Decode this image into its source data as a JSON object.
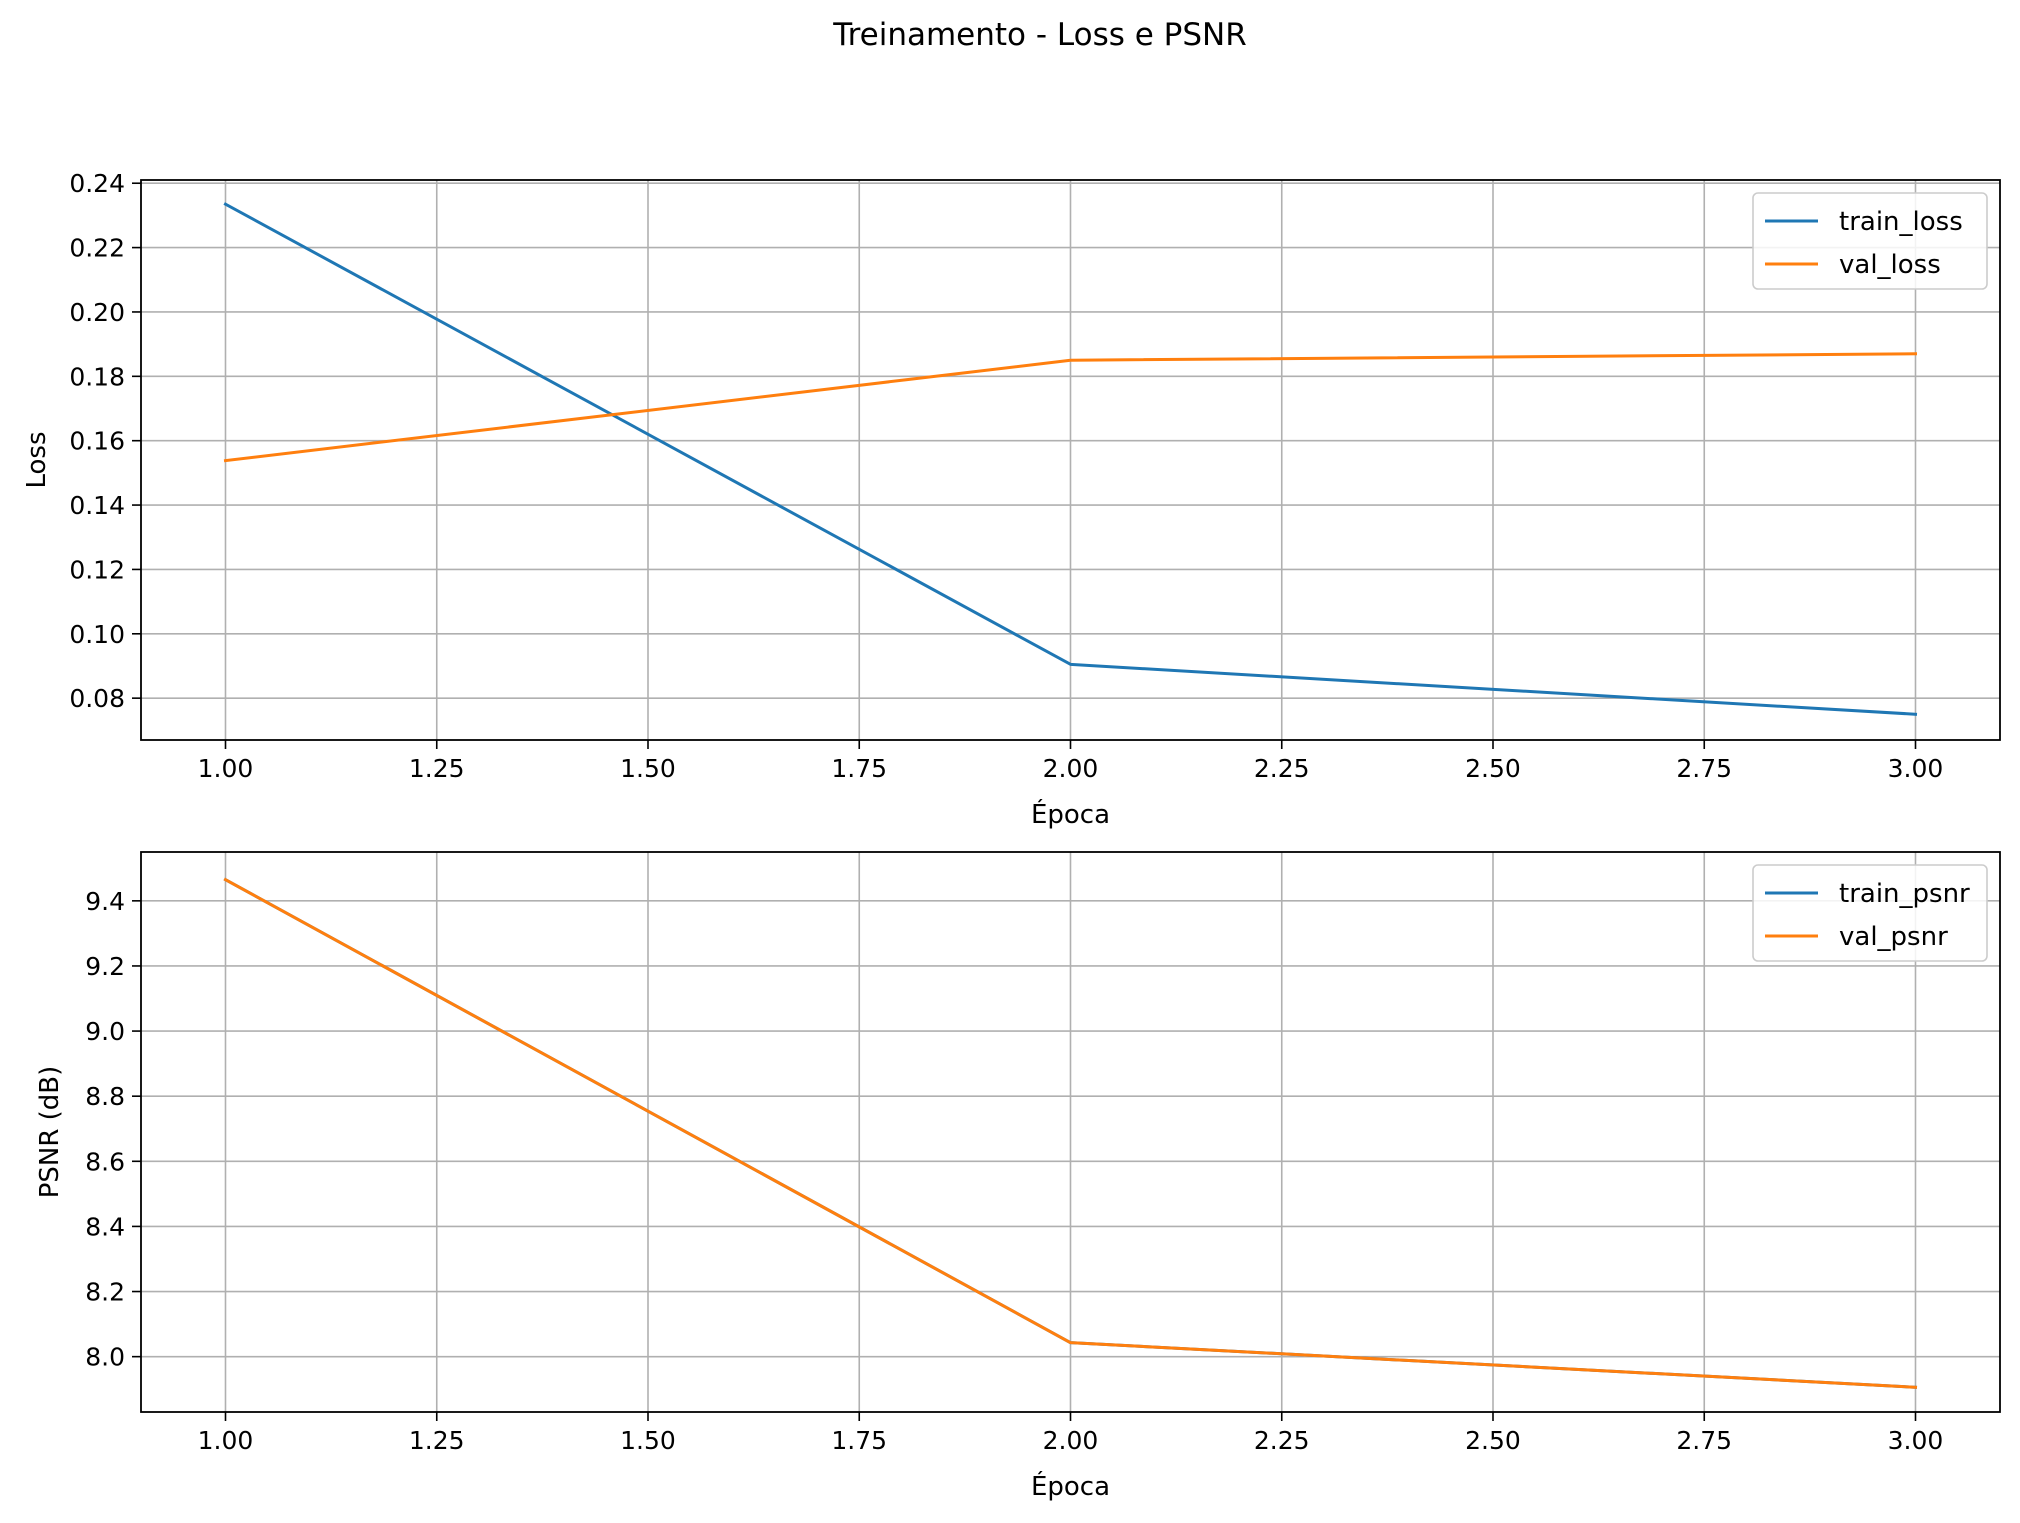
{
  "figure": {
    "title": "Treinamento - Loss e PSNR"
  },
  "chart_data": [
    {
      "type": "line",
      "xlabel": "Época",
      "ylabel": "Loss",
      "x": [
        1,
        2,
        3
      ],
      "xlim": [
        0.9,
        3.1
      ],
      "ylim": [
        0.067,
        0.241
      ],
      "xticks": [
        1.0,
        1.25,
        1.5,
        1.75,
        2.0,
        2.25,
        2.5,
        2.75,
        3.0
      ],
      "yticks": [
        0.08,
        0.1,
        0.12,
        0.14,
        0.16,
        0.18,
        0.2,
        0.22,
        0.24
      ],
      "tick_decimals": {
        "x": 2,
        "y": 2
      },
      "grid": true,
      "legend_position": "top-right",
      "series": [
        {
          "name": "train_loss",
          "color": "#1f77b4",
          "values": [
            0.2335,
            0.0905,
            0.075
          ]
        },
        {
          "name": "val_loss",
          "color": "#ff7f0e",
          "values": [
            0.1538,
            0.185,
            0.187
          ]
        }
      ]
    },
    {
      "type": "line",
      "xlabel": "Época",
      "ylabel": "PSNR (dB)",
      "x": [
        1,
        2,
        3
      ],
      "xlim": [
        0.9,
        3.1
      ],
      "ylim": [
        7.83,
        9.55
      ],
      "xticks": [
        1.0,
        1.25,
        1.5,
        1.75,
        2.0,
        2.25,
        2.5,
        2.75,
        3.0
      ],
      "yticks": [
        8.0,
        8.2,
        8.4,
        8.6,
        8.8,
        9.0,
        9.2,
        9.4
      ],
      "tick_decimals": {
        "x": 2,
        "y": 1
      },
      "grid": true,
      "legend_position": "top-right",
      "series": [
        {
          "name": "train_psnr",
          "color": "#1f77b4",
          "values": [
            9.465,
            8.043,
            7.906
          ]
        },
        {
          "name": "val_psnr",
          "color": "#ff7f0e",
          "values": [
            9.465,
            8.043,
            7.906
          ]
        }
      ]
    }
  ]
}
